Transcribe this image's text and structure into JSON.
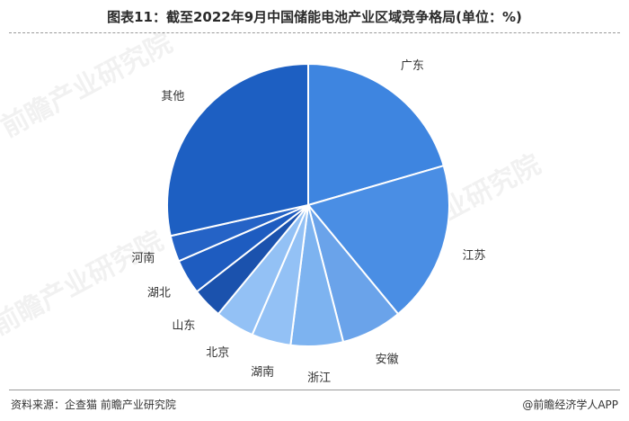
{
  "page": {
    "title": "图表11：截至2022年9月中国储能电池产业区域竞争格局(单位：%)",
    "source": "资料来源：企查猫 前瞻产业研究院",
    "brand": "@前瞻经济学人APP",
    "watermark": "前瞻产业研究院"
  },
  "chart_data": {
    "type": "pie",
    "title": "图表11：截至2022年9月中国储能电池产业区域竞争格局(单位：%)",
    "start_angle_deg": 0,
    "direction": "clockwise",
    "labels": [
      "广东",
      "江苏",
      "安徽",
      "浙江",
      "湖南",
      "北京",
      "山东",
      "湖北",
      "河南",
      "其他"
    ],
    "values": [
      20.5,
      18.5,
      7.0,
      6.0,
      4.5,
      4.5,
      3.5,
      4.0,
      3.0,
      28.5
    ],
    "colors": [
      "#3e85e0",
      "#4a8ee4",
      "#6aa3ea",
      "#7db3f0",
      "#93c1f5",
      "#93c1f5",
      "#1b52ad",
      "#1e5cc0",
      "#2563c6",
      "#1d5fc2"
    ]
  }
}
